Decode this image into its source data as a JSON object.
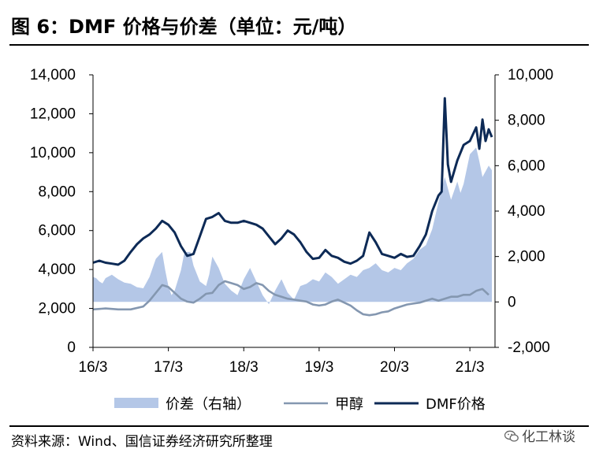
{
  "title": "图 6：DMF 价格与价差（单位：元/吨）",
  "source": "资料来源：Wind、国信证券经济研究所整理",
  "watermark": "化工林谈",
  "watermark_icon": "wechat-icon",
  "colors": {
    "spread_fill": "#b4c7e7",
    "methanol": "#8497b0",
    "dmf": "#0d2a56"
  },
  "chart_data": {
    "type": "area",
    "x_ticks": [
      "16/3",
      "17/3",
      "18/3",
      "19/3",
      "20/3",
      "21/3"
    ],
    "y_left": {
      "ticks": [
        "0",
        "2,000",
        "4,000",
        "6,000",
        "8,000",
        "10,000",
        "12,000",
        "14,000"
      ],
      "ylim": [
        0,
        14000
      ]
    },
    "y_right": {
      "ticks": [
        "-2,000",
        "0",
        "2,000",
        "4,000",
        "6,000",
        "8,000",
        "10,000"
      ],
      "ylim": [
        -2000,
        10000
      ]
    },
    "grid": false,
    "legend_position": "bottom",
    "series": [
      {
        "name": "价差（右轴）",
        "axis": "right",
        "render": "area",
        "points": [
          [
            0.0,
            1100
          ],
          [
            0.5,
            1050
          ],
          [
            1.0,
            900
          ],
          [
            1.5,
            820
          ],
          [
            2.0,
            1050
          ],
          [
            3.0,
            1200
          ],
          [
            4.0,
            1000
          ],
          [
            5.0,
            850
          ],
          [
            6.0,
            800
          ],
          [
            7.0,
            650
          ],
          [
            8.0,
            600
          ],
          [
            9.0,
            1100
          ],
          [
            10.0,
            1900
          ],
          [
            11.0,
            2200
          ],
          [
            11.5,
            1400
          ],
          [
            12.0,
            700
          ],
          [
            12.5,
            300
          ],
          [
            13.0,
            500
          ],
          [
            14.0,
            1400
          ],
          [
            14.5,
            2100
          ],
          [
            15.0,
            2200
          ],
          [
            15.5,
            2200
          ],
          [
            16.0,
            1600
          ],
          [
            17.0,
            900
          ],
          [
            18.0,
            700
          ],
          [
            18.5,
            1200
          ],
          [
            19.0,
            2000
          ],
          [
            20.0,
            1500
          ],
          [
            21.0,
            800
          ],
          [
            22.0,
            500
          ],
          [
            23.0,
            300
          ],
          [
            24.0,
            1000
          ],
          [
            25.0,
            1500
          ],
          [
            26.0,
            900
          ],
          [
            27.0,
            300
          ],
          [
            28.0,
            -100
          ],
          [
            29.0,
            500
          ],
          [
            30.0,
            1000
          ],
          [
            31.0,
            400
          ],
          [
            32.0,
            100
          ],
          [
            33.0,
            700
          ],
          [
            34.0,
            800
          ],
          [
            35.0,
            1000
          ],
          [
            36.0,
            900
          ],
          [
            37.0,
            1300
          ],
          [
            38.0,
            1100
          ],
          [
            39.0,
            800
          ],
          [
            40.0,
            1000
          ],
          [
            41.0,
            1200
          ],
          [
            42.0,
            1100
          ],
          [
            43.0,
            1400
          ],
          [
            44.0,
            1500
          ],
          [
            45.0,
            1700
          ],
          [
            46.0,
            1400
          ],
          [
            47.0,
            1300
          ],
          [
            48.0,
            1500
          ],
          [
            49.0,
            1400
          ],
          [
            50.0,
            1700
          ],
          [
            51.0,
            1900
          ],
          [
            52.0,
            2300
          ],
          [
            53.0,
            2500
          ],
          [
            54.0,
            3200
          ],
          [
            55.0,
            4400
          ],
          [
            56.0,
            5500
          ],
          [
            57.0,
            4500
          ],
          [
            58.0,
            5300
          ],
          [
            58.5,
            4800
          ],
          [
            59.0,
            5200
          ],
          [
            60.0,
            6500
          ],
          [
            61.0,
            6800
          ],
          [
            61.5,
            6200
          ],
          [
            62.0,
            5500
          ],
          [
            63.0,
            6000
          ],
          [
            63.5,
            5800
          ]
        ]
      },
      {
        "name": "甲醇",
        "axis": "left",
        "render": "line",
        "points": [
          [
            0.0,
            1950
          ],
          [
            2.0,
            2000
          ],
          [
            4.0,
            1950
          ],
          [
            6.0,
            1950
          ],
          [
            8.0,
            2100
          ],
          [
            9.0,
            2400
          ],
          [
            10.0,
            2800
          ],
          [
            11.0,
            3200
          ],
          [
            12.0,
            3100
          ],
          [
            13.0,
            2800
          ],
          [
            14.0,
            2500
          ],
          [
            15.0,
            2350
          ],
          [
            16.0,
            2300
          ],
          [
            17.0,
            2500
          ],
          [
            18.0,
            2750
          ],
          [
            19.0,
            2800
          ],
          [
            20.0,
            3200
          ],
          [
            21.0,
            3400
          ],
          [
            22.0,
            3300
          ],
          [
            23.0,
            3200
          ],
          [
            24.0,
            3000
          ],
          [
            25.0,
            3100
          ],
          [
            26.0,
            3300
          ],
          [
            27.0,
            3200
          ],
          [
            28.0,
            2900
          ],
          [
            29.0,
            2700
          ],
          [
            30.0,
            2600
          ],
          [
            31.0,
            2500
          ],
          [
            32.0,
            2450
          ],
          [
            33.0,
            2400
          ],
          [
            34.0,
            2350
          ],
          [
            35.0,
            2200
          ],
          [
            36.0,
            2150
          ],
          [
            37.0,
            2200
          ],
          [
            38.0,
            2350
          ],
          [
            39.0,
            2450
          ],
          [
            40.0,
            2300
          ],
          [
            41.0,
            2150
          ],
          [
            42.0,
            1900
          ],
          [
            43.0,
            1700
          ],
          [
            44.0,
            1650
          ],
          [
            45.0,
            1700
          ],
          [
            46.0,
            1800
          ],
          [
            47.0,
            1850
          ],
          [
            48.0,
            2000
          ],
          [
            49.0,
            2100
          ],
          [
            50.0,
            2200
          ],
          [
            51.0,
            2250
          ],
          [
            52.0,
            2300
          ],
          [
            53.0,
            2400
          ],
          [
            54.0,
            2500
          ],
          [
            55.0,
            2400
          ],
          [
            56.0,
            2500
          ],
          [
            57.0,
            2600
          ],
          [
            58.0,
            2600
          ],
          [
            59.0,
            2700
          ],
          [
            60.0,
            2700
          ],
          [
            61.0,
            2900
          ],
          [
            62.0,
            3000
          ],
          [
            63.0,
            2700
          ]
        ]
      },
      {
        "name": "DMF价格",
        "axis": "left",
        "render": "line",
        "points": [
          [
            0.0,
            4350
          ],
          [
            1.0,
            4450
          ],
          [
            2.0,
            4350
          ],
          [
            3.0,
            4300
          ],
          [
            4.0,
            4250
          ],
          [
            5.0,
            4450
          ],
          [
            6.0,
            4900
          ],
          [
            7.0,
            5300
          ],
          [
            8.0,
            5600
          ],
          [
            9.0,
            5800
          ],
          [
            10.0,
            6100
          ],
          [
            11.0,
            6500
          ],
          [
            12.0,
            6300
          ],
          [
            13.0,
            5900
          ],
          [
            14.0,
            5200
          ],
          [
            15.0,
            4700
          ],
          [
            16.0,
            4800
          ],
          [
            17.0,
            5700
          ],
          [
            18.0,
            6600
          ],
          [
            19.0,
            6700
          ],
          [
            20.0,
            6900
          ],
          [
            21.0,
            6500
          ],
          [
            22.0,
            6400
          ],
          [
            23.0,
            6400
          ],
          [
            24.0,
            6500
          ],
          [
            25.0,
            6400
          ],
          [
            26.0,
            6300
          ],
          [
            27.0,
            6100
          ],
          [
            28.0,
            5700
          ],
          [
            29.0,
            5300
          ],
          [
            30.0,
            5600
          ],
          [
            31.0,
            6000
          ],
          [
            32.0,
            5800
          ],
          [
            33.0,
            5400
          ],
          [
            34.0,
            4900
          ],
          [
            35.0,
            4550
          ],
          [
            36.0,
            4600
          ],
          [
            37.0,
            5000
          ],
          [
            38.0,
            4700
          ],
          [
            39.0,
            4600
          ],
          [
            40.0,
            4400
          ],
          [
            41.0,
            4300
          ],
          [
            42.0,
            4450
          ],
          [
            43.0,
            4700
          ],
          [
            44.0,
            5900
          ],
          [
            45.0,
            5400
          ],
          [
            46.0,
            4800
          ],
          [
            47.0,
            4700
          ],
          [
            48.0,
            4600
          ],
          [
            49.0,
            4800
          ],
          [
            50.0,
            4650
          ],
          [
            51.0,
            4700
          ],
          [
            52.0,
            5200
          ],
          [
            53.0,
            5800
          ],
          [
            54.0,
            7000
          ],
          [
            55.0,
            7800
          ],
          [
            55.5,
            8000
          ],
          [
            56.0,
            12800
          ],
          [
            56.5,
            9400
          ],
          [
            57.0,
            8500
          ],
          [
            58.0,
            9600
          ],
          [
            59.0,
            10400
          ],
          [
            60.0,
            10600
          ],
          [
            61.0,
            11300
          ],
          [
            61.5,
            10200
          ],
          [
            62.0,
            11700
          ],
          [
            62.5,
            10600
          ],
          [
            63.0,
            11200
          ],
          [
            63.5,
            10800
          ]
        ]
      }
    ]
  }
}
